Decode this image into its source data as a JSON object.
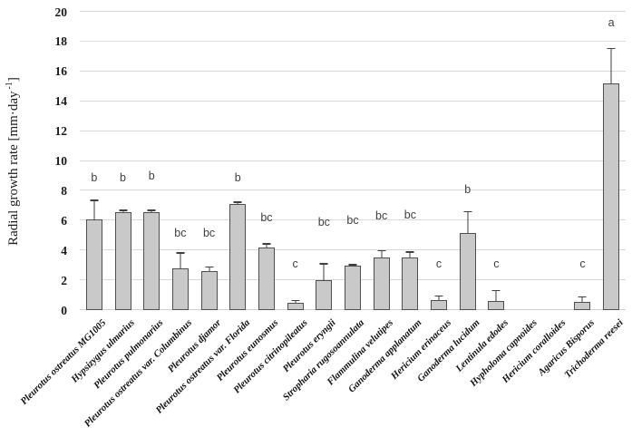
{
  "figure": {
    "background": "#ffffff"
  },
  "chart_data": {
    "type": "bar",
    "title": "",
    "xlabel": "",
    "ylabel": "Radial growth rate [mm·day -1]",
    "ylabel_parts": {
      "prefix": "Radial growth rate [mm·day",
      "sup": "-1",
      "suffix": "]"
    },
    "ylim": [
      0,
      20
    ],
    "yticks": [
      0,
      2,
      4,
      6,
      8,
      10,
      12,
      14,
      16,
      18,
      20
    ],
    "grid": true,
    "legend": false,
    "bar_color": "#c9c9c9",
    "bar_border_color": "#4f4f4f",
    "gridline_color": "#d9d9d9",
    "baseline_color": "#d0d0d0",
    "error_bar_color": "#3f3f3f",
    "sig_letter_color": "#404040",
    "categories": [
      "Pleurotus ostreatus MG1005",
      "Hypsizygus ulmarius",
      "Pleurotus pulmonarius",
      "Pleurotus ostreatus var. Columbinus",
      "Pleurotus djamor",
      "Pleurotus ostreatus var. Florida",
      "Pleurotus eunosmus",
      "Pleurotus citrinopileatus",
      "Pleurotus eryngii",
      "Stropharia rugosoannulata",
      "Flammulina velutipes",
      "Ganoderma applanatum",
      "Hericium erinaceus",
      "Ganoderma lucidum",
      "Lentinula edodes",
      "Hypholoma capnoides",
      "Hericium coralloides",
      "Agaricus Bisporus",
      "Trichoderma reesei"
    ],
    "values": [
      6.1,
      6.55,
      6.55,
      2.8,
      2.6,
      7.1,
      4.2,
      0.5,
      2.0,
      2.95,
      3.55,
      3.5,
      0.65,
      5.15,
      0.6,
      0,
      0,
      0.55,
      15.2
    ],
    "error_upper": [
      1.2,
      0.1,
      0.1,
      1.0,
      0.25,
      0.1,
      0.2,
      0.1,
      1.05,
      0.05,
      0.4,
      0.35,
      0.25,
      1.4,
      0.65,
      0,
      0,
      0.3,
      2.3
    ],
    "sig_letters": [
      "b",
      "b",
      "b",
      "bc",
      "bc",
      "b",
      "bc",
      "c",
      "bc",
      "bc",
      "bc",
      "bc",
      "c",
      "b",
      "c",
      "",
      "",
      "c",
      "a"
    ],
    "sig_letter_levels": [
      8.5,
      8.5,
      8.6,
      4.8,
      4.8,
      8.5,
      5.8,
      2.7,
      5.5,
      5.6,
      5.9,
      6.0,
      2.7,
      7.7,
      2.7,
      null,
      null,
      2.7,
      18.9
    ]
  }
}
